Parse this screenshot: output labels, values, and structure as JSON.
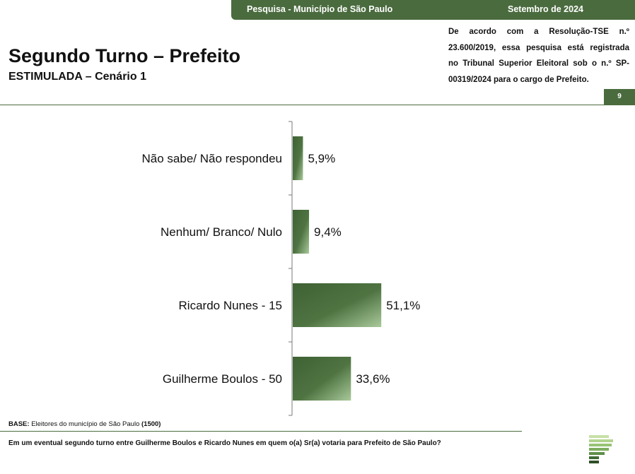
{
  "header": {
    "survey": "Pesquisa - Município de São Paulo",
    "date": "Setembro de 2024",
    "title": "Segundo Turno – Prefeito",
    "subtitle": "ESTIMULADA – Cenário 1",
    "legal_lines": [
      "De acordo com a Resolução-TSE n.º",
      "23.600/2019, essa pesquisa está registrada",
      "no Tribunal Superior Eleitoral sob o n.º SP-",
      "00319/2024 para o cargo de Prefeito."
    ],
    "page_number": "9"
  },
  "footer": {
    "base_label": "BASE:",
    "base_text": "Eleitores do município de São Paulo",
    "base_n": "(1500)",
    "question": "Em um eventual segundo turno entre Guilherme Boulos e Ricardo Nunes em quem o(a) Sr(a) votaria para Prefeito de São Paulo?"
  },
  "colors": {
    "accent": "#4a6b3e",
    "bar_dark": "#3f6134",
    "bar_light": "#a9c99a"
  },
  "chart_data": {
    "type": "bar",
    "orientation": "horizontal",
    "categories": [
      "Não sabe/ Não respondeu",
      "Nenhum/ Branco/ Nulo",
      "Ricardo Nunes - 15",
      "Guilherme Boulos - 50"
    ],
    "values": [
      5.9,
      9.4,
      51.1,
      33.6
    ],
    "value_labels": [
      "5,9%",
      "9,4%",
      "51,1%",
      "33,6%"
    ],
    "unit": "%",
    "grid": false
  }
}
